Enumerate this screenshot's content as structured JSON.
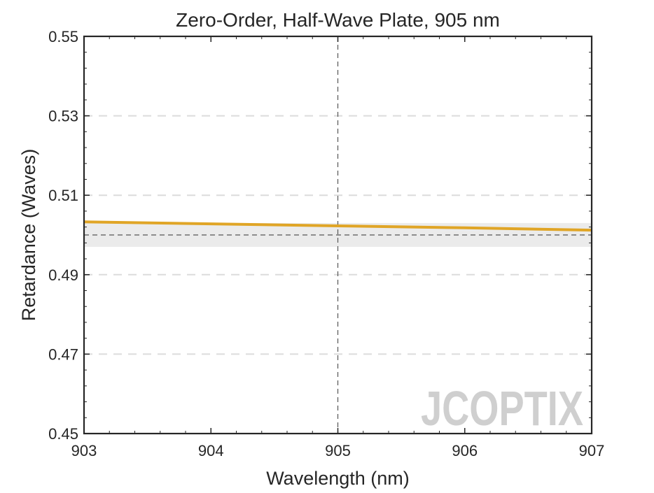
{
  "chart_data": {
    "type": "line",
    "title": "Zero-Order, Half-Wave Plate, 905 nm",
    "xlabel": "Wavelength (nm)",
    "ylabel": "Retardance (Waves)",
    "xlim": [
      903,
      907
    ],
    "ylim": [
      0.45,
      0.55
    ],
    "x_ticks": [
      903,
      904,
      905,
      906,
      907
    ],
    "y_ticks": [
      0.45,
      0.47,
      0.49,
      0.51,
      0.53,
      0.55
    ],
    "x_tick_labels": [
      "903",
      "904",
      "905",
      "906",
      "907"
    ],
    "y_tick_labels": [
      "0.45",
      "0.47",
      "0.49",
      "0.51",
      "0.53",
      "0.55"
    ],
    "grid": "horizontal dashed",
    "series": [
      {
        "x": [
          903,
          904,
          905,
          906,
          907
        ],
        "values": [
          0.5033,
          0.5028,
          0.5023,
          0.5018,
          0.5012
        ],
        "color": "#E0A526"
      }
    ],
    "reference_line": {
      "y": 0.5,
      "color": "#555555"
    },
    "tolerance_band": {
      "y_range": [
        0.497,
        0.503
      ],
      "color": "#EBEBEB"
    },
    "center_wavelength": 905,
    "watermark": {
      "text": "JCOPTIX",
      "color": "#CFCFCF",
      "accent": "#F2CFAE"
    }
  }
}
